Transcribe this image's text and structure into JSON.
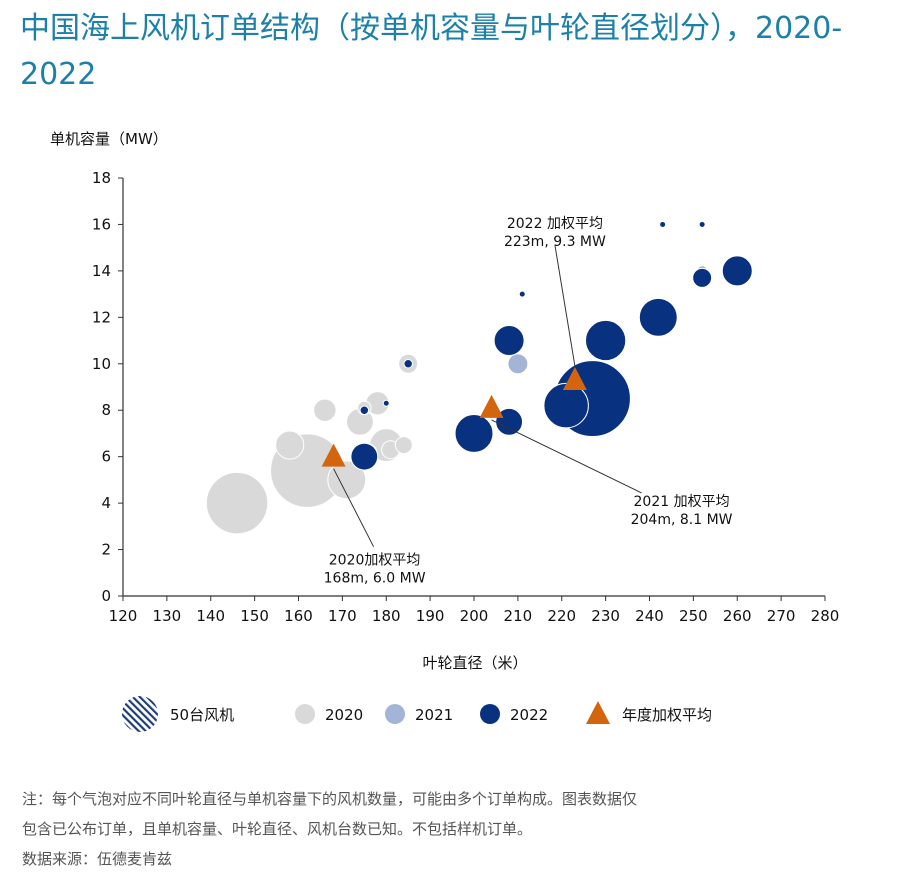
{
  "title": "中国海上风机订单结构（按单机容量与叶轮直径划分），2020-2022",
  "colors": {
    "c2020": "#d9d9d9",
    "c2021": "#a3b5d6",
    "c2022": "#08317f",
    "avg": "#d4650f",
    "title": "#1c80a9"
  },
  "chart_data": {
    "type": "scatter",
    "xlabel": "叶轮直径（米）",
    "ylabel": "单机容量（MW）",
    "xlim": [
      120,
      280
    ],
    "ylim": [
      0,
      18
    ],
    "xticks": [
      120,
      130,
      140,
      150,
      160,
      170,
      180,
      190,
      200,
      210,
      220,
      230,
      240,
      250,
      260,
      270,
      280
    ],
    "yticks": [
      0,
      2,
      4,
      6,
      8,
      10,
      12,
      14,
      16,
      18
    ],
    "bubble_size_unit": "台风机",
    "series": [
      {
        "name": "2020",
        "color": "#d9d9d9",
        "points": [
          {
            "x": 146,
            "y": 4.0,
            "size": 105
          },
          {
            "x": 162,
            "y": 5.4,
            "size": 150
          },
          {
            "x": 171,
            "y": 5.0,
            "size": 40
          },
          {
            "x": 158,
            "y": 6.5,
            "size": 22
          },
          {
            "x": 166,
            "y": 8.0,
            "size": 14
          },
          {
            "x": 174,
            "y": 7.5,
            "size": 20
          },
          {
            "x": 180,
            "y": 6.5,
            "size": 30
          },
          {
            "x": 178,
            "y": 8.3,
            "size": 15
          },
          {
            "x": 181,
            "y": 6.3,
            "size": 9
          },
          {
            "x": 184,
            "y": 6.5,
            "size": 8
          },
          {
            "x": 185,
            "y": 10.0,
            "size": 10
          },
          {
            "x": 175,
            "y": 8.1,
            "size": 5
          },
          {
            "x": 200,
            "y": 7.0,
            "size": 1
          }
        ]
      },
      {
        "name": "2021",
        "color": "#a3b5d6",
        "points": [
          {
            "x": 176,
            "y": 6.2,
            "size": 7
          },
          {
            "x": 210,
            "y": 10.0,
            "size": 11
          },
          {
            "x": 220,
            "y": 8.0,
            "size": 22
          },
          {
            "x": 231,
            "y": 9.0,
            "size": 14
          },
          {
            "x": 252,
            "y": 14.0,
            "size": 3
          }
        ]
      },
      {
        "name": "2022",
        "color": "#08317f",
        "points": [
          {
            "x": 175,
            "y": 6.0,
            "size": 20
          },
          {
            "x": 175,
            "y": 8.0,
            "size": 2
          },
          {
            "x": 180,
            "y": 8.3,
            "size": 1
          },
          {
            "x": 185,
            "y": 10.0,
            "size": 2
          },
          {
            "x": 200,
            "y": 7.0,
            "size": 40
          },
          {
            "x": 208,
            "y": 7.5,
            "size": 20
          },
          {
            "x": 208,
            "y": 11.0,
            "size": 25
          },
          {
            "x": 211,
            "y": 13.0,
            "size": 1
          },
          {
            "x": 227,
            "y": 8.5,
            "size": 160
          },
          {
            "x": 221,
            "y": 8.2,
            "size": 55
          },
          {
            "x": 230,
            "y": 11.0,
            "size": 45
          },
          {
            "x": 242,
            "y": 12.0,
            "size": 40
          },
          {
            "x": 243,
            "y": 16.0,
            "size": 1
          },
          {
            "x": 252,
            "y": 13.7,
            "size": 10
          },
          {
            "x": 252,
            "y": 16.0,
            "size": 1
          },
          {
            "x": 260,
            "y": 14.0,
            "size": 25
          }
        ]
      }
    ],
    "averages": [
      {
        "year": "2020",
        "x": 168,
        "y": 6.0,
        "label_title": "2020加权平均",
        "label_value": "168m, 6.0 MW",
        "label_anchor": "below"
      },
      {
        "year": "2021",
        "x": 204,
        "y": 8.1,
        "label_title": "2021 加权平均",
        "label_value": "204m, 8.1 MW",
        "label_anchor": "lower-right"
      },
      {
        "year": "2022",
        "x": 223,
        "y": 9.3,
        "label_title": "2022 加权平均",
        "label_value": "223m, 9.3 MW",
        "label_anchor": "above"
      }
    ],
    "legend": {
      "size_label": "50台风机",
      "year_labels": [
        "2020",
        "2021",
        "2022"
      ],
      "avg_label": "年度加权平均",
      "placement": "bottom"
    }
  },
  "notes": {
    "line1": "注：每个气泡对应不同叶轮直径与单机容量下的风机数量，可能由多个订单构成。图表数据仅",
    "line2": "包含已公布订单，且单机容量、叶轮直径、风机台数已知。不包括样机订单。",
    "source": "数据来源：伍德麦肯兹"
  }
}
